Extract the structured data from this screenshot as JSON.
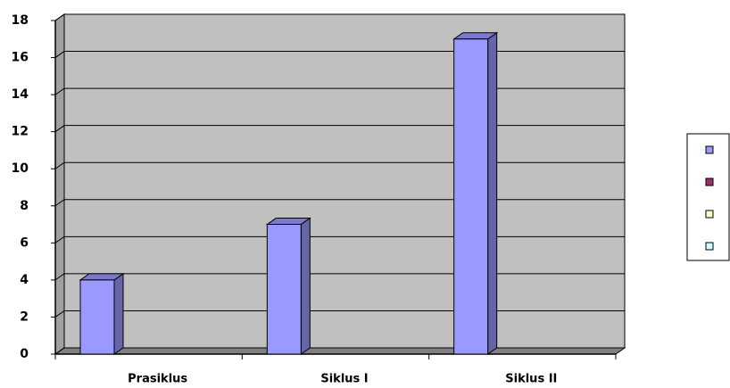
{
  "chart_data": {
    "type": "bar",
    "categories": [
      "Prasiklus",
      "Siklus I",
      "Siklus II"
    ],
    "series": [
      {
        "color": "#9999ff",
        "values": [
          4,
          7,
          17
        ]
      },
      {
        "color": "#993366",
        "values": [
          null,
          null,
          null
        ]
      },
      {
        "color": "#ffffcc",
        "values": [
          null,
          null,
          null
        ]
      },
      {
        "color": "#ccffff",
        "values": [
          null,
          null,
          null
        ]
      }
    ],
    "ylim": [
      0,
      18
    ],
    "yticks": [
      0,
      2,
      4,
      6,
      8,
      10,
      12,
      14,
      16,
      18
    ],
    "grid": true,
    "plot_background": "#c0c0c0",
    "legend": "right"
  }
}
